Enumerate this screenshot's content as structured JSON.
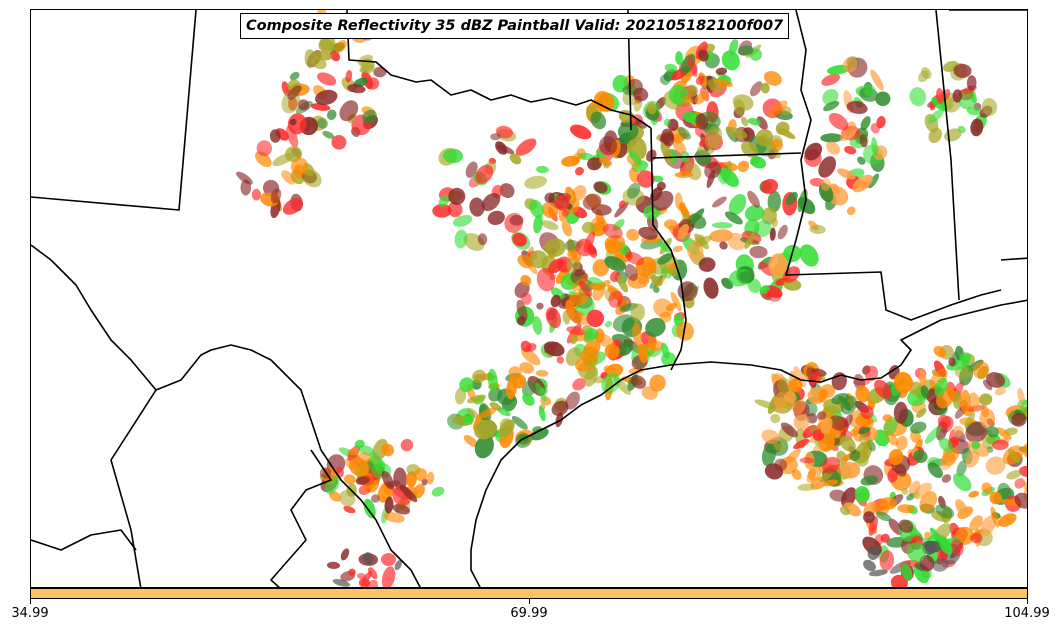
{
  "title": "Composite Reflectivity 35 dBZ Paintball Valid: 202105182100f007",
  "colorbar": {
    "color": "#ffc266",
    "ticks": [
      "34.99",
      "69.99",
      "104.99"
    ]
  },
  "palette": {
    "red": "#ff2a2a",
    "orange": "#ff8800",
    "light_orange": "#ffa040",
    "green": "#33dd33",
    "dark_green": "#2e8b2e",
    "olive": "#a8a828",
    "maroon": "#8b2a2a",
    "gray": "#555555",
    "map_lines": "#000000"
  }
}
